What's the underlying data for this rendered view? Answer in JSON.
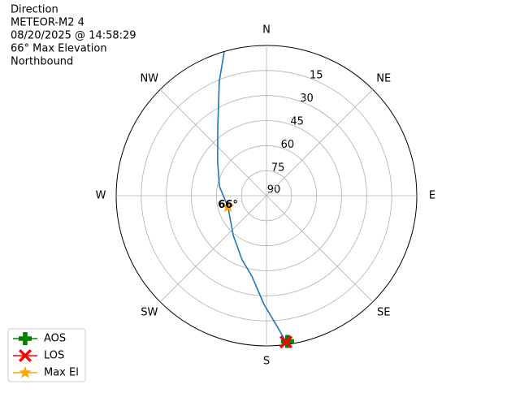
{
  "chart_data": {
    "type": "polar",
    "title_lines": [
      "Direction",
      "METEOR-M2 4",
      "08/20/2025 @ 14:58:29",
      "66° Max Elevation",
      "Northbound"
    ],
    "rlim": [
      90,
      0
    ],
    "rticks": [
      90,
      75,
      60,
      45,
      30,
      15
    ],
    "theta_ticks": [
      {
        "value": 0,
        "label": "N"
      },
      {
        "value": 45,
        "label": "NE"
      },
      {
        "value": 90,
        "label": "E"
      },
      {
        "value": 135,
        "label": "SE"
      },
      {
        "value": 180,
        "label": "S"
      },
      {
        "value": 225,
        "label": "SW"
      },
      {
        "value": 270,
        "label": "W"
      },
      {
        "value": 315,
        "label": "NW"
      }
    ],
    "grid": true,
    "track": {
      "color": "#1f77b4",
      "az": [
        343.6,
        337.6,
        323.5,
        304.3,
        281,
        254,
        220,
        200.8,
        190.3,
        181.3,
        175.7,
        172.4
      ],
      "el": [
        0.3,
        15.8,
        40.9,
        54.6,
        61.3,
        66,
        59,
        48.9,
        41,
        24.8,
        12.4,
        1.6
      ]
    },
    "series": [
      {
        "name": "AOS",
        "color": "#008000",
        "marker": "plus",
        "az": [
          171.8
        ],
        "el": [
          1.8
        ]
      },
      {
        "name": "LOS",
        "color": "#ff0000",
        "marker": "x",
        "az": [
          172.4
        ],
        "el": [
          1.6
        ]
      },
      {
        "name": "Max El",
        "color": "#ffa500",
        "marker": "star",
        "az": [
          254
        ],
        "el": [
          66
        ]
      }
    ],
    "annotation": {
      "text": "66°",
      "az": 254,
      "el": 66
    },
    "legend": "lower left"
  }
}
